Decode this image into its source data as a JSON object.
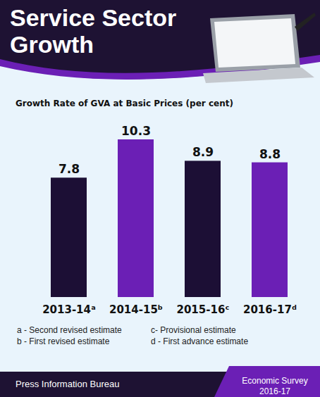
{
  "chart_data": {
    "type": "bar",
    "title": "Service Sector Growth",
    "subtitle": "Growth Rate of GVA at Basic Prices (per cent)",
    "categories": [
      "2013-14ᵃ",
      "2014-15ᵇ",
      "2015-16ᶜ",
      "2016-17ᵈ"
    ],
    "values": [
      7.8,
      10.3,
      8.9,
      8.8
    ],
    "colors": [
      "#1c0f35",
      "#6b1fb5",
      "#1c0f35",
      "#6b1fb5"
    ],
    "ylim": [
      0,
      10.3
    ],
    "data_labels": true,
    "tick_labels": "x",
    "notes": [
      "a - Second revised estimate",
      "b - First revised estimate",
      "c- Provisional estimate",
      "d - First advance estimate"
    ],
    "source": "Press Information Bureau",
    "publication": "Economic Survey 2016-17"
  }
}
